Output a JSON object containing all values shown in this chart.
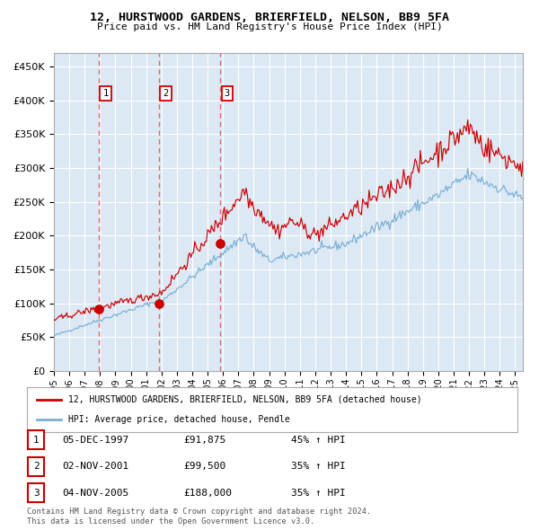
{
  "title": "12, HURSTWOOD GARDENS, BRIERFIELD, NELSON, BB9 5FA",
  "subtitle": "Price paid vs. HM Land Registry's House Price Index (HPI)",
  "red_label": "12, HURSTWOOD GARDENS, BRIERFIELD, NELSON, BB9 5FA (detached house)",
  "blue_label": "HPI: Average price, detached house, Pendle",
  "sales": [
    {
      "num": 1,
      "date_str": "05-DEC-1997",
      "year": 1997.92,
      "price": 91875,
      "pct": "45% ↑ HPI"
    },
    {
      "num": 2,
      "date_str": "02-NOV-2001",
      "year": 2001.83,
      "price": 99500,
      "pct": "35% ↑ HPI"
    },
    {
      "num": 3,
      "date_str": "04-NOV-2005",
      "year": 2005.83,
      "price": 188000,
      "pct": "35% ↑ HPI"
    }
  ],
  "footer1": "Contains HM Land Registry data © Crown copyright and database right 2024.",
  "footer2": "This data is licensed under the Open Government Licence v3.0.",
  "bg_color": "#dce9f5",
  "grid_color": "#ffffff",
  "red_color": "#cc0000",
  "blue_color": "#7bafd4",
  "dashed_color": "#e05050",
  "ylim": [
    0,
    470000
  ],
  "yticks": [
    0,
    50000,
    100000,
    150000,
    200000,
    250000,
    300000,
    350000,
    400000,
    450000
  ],
  "xlim_start": 1995.0,
  "xlim_end": 2025.5
}
